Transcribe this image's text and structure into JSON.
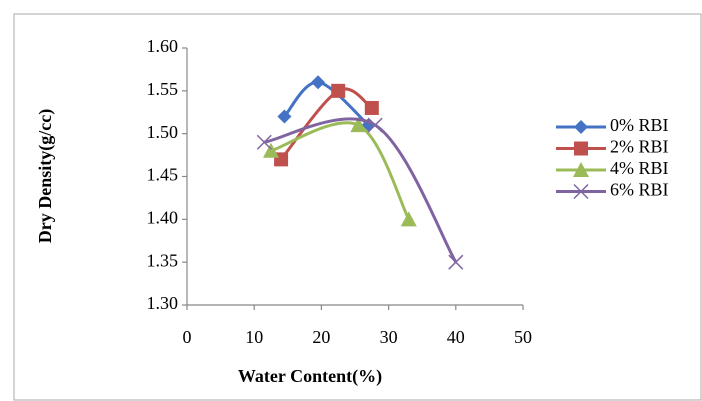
{
  "chart_data": {
    "type": "scatter",
    "x_label": "Water Content(%)",
    "y_label": "Dry Density(g/cc)",
    "xlim": [
      0,
      50
    ],
    "xticks": [
      0,
      10,
      20,
      30,
      40,
      50
    ],
    "ylim": [
      1.3,
      1.6
    ],
    "yticks": [
      {
        "value": 1.3,
        "label": "1.30"
      },
      {
        "value": 1.35,
        "label": "1.35"
      },
      {
        "value": 1.4,
        "label": "1.40"
      },
      {
        "value": 1.45,
        "label": "1.45"
      },
      {
        "value": 1.5,
        "label": "1.50"
      },
      {
        "value": 1.55,
        "label": "1.55"
      },
      {
        "value": 1.6,
        "label": "1.60"
      }
    ],
    "smooth": true,
    "legend": "right",
    "series": [
      {
        "name": "0% RBI",
        "color": "#4472c4",
        "marker": "diamond",
        "x": [
          14.5,
          19.5,
          27
        ],
        "values": [
          1.52,
          1.56,
          1.51
        ]
      },
      {
        "name": "2% RBI",
        "color": "#c0504d",
        "marker": "square",
        "x": [
          14,
          22.5,
          27.5
        ],
        "values": [
          1.47,
          1.55,
          1.53
        ]
      },
      {
        "name": "4% RBI",
        "color": "#9bbb59",
        "marker": "triangle",
        "x": [
          12.5,
          25.5,
          33
        ],
        "values": [
          1.48,
          1.51,
          1.4
        ]
      },
      {
        "name": "6% RBI",
        "color": "#8064a2",
        "marker": "x",
        "x": [
          11.5,
          28,
          40
        ],
        "values": [
          1.49,
          1.51,
          1.35
        ]
      }
    ]
  }
}
